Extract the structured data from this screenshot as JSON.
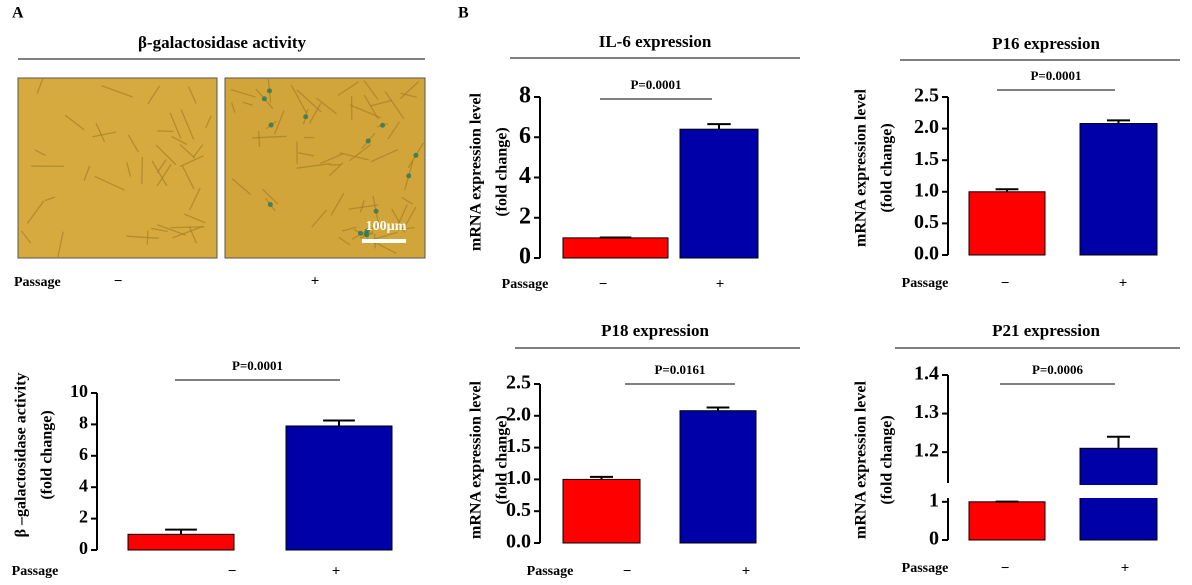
{
  "panel_labels": [
    "A",
    "B"
  ],
  "image_panel": {
    "title": "β-galactosidase activity",
    "scale_bar": "100µm",
    "x_label": "Passage",
    "categories": [
      "−",
      "+"
    ]
  },
  "chart_data": [
    {
      "type": "bar",
      "ylabel_lines": [
        "β –galactosidase activity",
        "(fold change)"
      ],
      "xlabel": "Passage",
      "categories": [
        "−",
        "+"
      ],
      "colors": [
        "#ff0000",
        "#0000a8"
      ],
      "values": [
        1.0,
        7.9
      ],
      "errors": [
        0.3,
        0.35
      ],
      "annotation": "P=0.0001",
      "ylim": [
        0,
        10
      ],
      "yticks": [
        0,
        2,
        4,
        6,
        8,
        10
      ]
    },
    {
      "type": "bar",
      "title": "IL-6 expression",
      "ylabel_lines": [
        "mRNA expression level",
        "(fold change)"
      ],
      "xlabel": "Passage",
      "categories": [
        "−",
        "+"
      ],
      "colors": [
        "#ff0000",
        "#0000a8"
      ],
      "values": [
        1.0,
        6.4
      ],
      "errors": [
        0.02,
        0.25
      ],
      "annotation": "P=0.0001",
      "ylim": [
        0,
        8
      ],
      "yticks": [
        0,
        2,
        4,
        6,
        8
      ]
    },
    {
      "type": "bar",
      "title": "P16 expression",
      "ylabel_lines": [
        "mRNA expression level",
        "(fold change)"
      ],
      "xlabel": "Passage",
      "categories": [
        "−",
        "+"
      ],
      "colors": [
        "#ff0000",
        "#0000a8"
      ],
      "values": [
        1.0,
        2.08
      ],
      "errors": [
        0.04,
        0.05
      ],
      "annotation": "P=0.0001",
      "ylim": [
        0,
        2.5
      ],
      "yticks": [
        {
          "value": 0,
          "label": "0.0"
        },
        0.5,
        {
          "value": 1,
          "label": "1.0"
        },
        1.5,
        {
          "value": 2,
          "label": "2.0"
        },
        2.5
      ]
    },
    {
      "type": "bar",
      "title": "P18 expression",
      "ylabel_lines": [
        "mRNA expression level",
        "(fold change)"
      ],
      "xlabel": "Passage",
      "categories": [
        "−",
        "+"
      ],
      "colors": [
        "#ff0000",
        "#0000a8"
      ],
      "values": [
        1.0,
        2.08
      ],
      "errors": [
        0.04,
        0.05
      ],
      "annotation": "P=0.0161",
      "ylim": [
        0,
        2.5
      ],
      "yticks": [
        {
          "value": 0,
          "label": "0.0"
        },
        0.5,
        {
          "value": 1,
          "label": "1.0"
        },
        1.5,
        {
          "value": 2,
          "label": "2.0"
        },
        2.5
      ]
    },
    {
      "type": "bar",
      "title": "P21 expression",
      "ylabel_lines": [
        "mRNA expression level",
        "(fold change)"
      ],
      "xlabel": "Passage",
      "categories": [
        "−",
        "+"
      ],
      "colors": [
        "#ff0000",
        "#0000a8"
      ],
      "values": [
        1.0,
        1.21
      ],
      "errors": [
        0.005,
        0.03
      ],
      "annotation": "P=0.0006",
      "ylim": [
        0,
        1.4
      ],
      "ybreak": [
        1.1,
        1.12
      ],
      "yticks": [
        0,
        1,
        1.2,
        1.3,
        1.4
      ]
    }
  ]
}
